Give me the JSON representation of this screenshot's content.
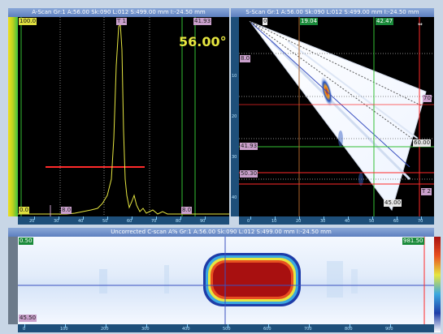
{
  "ascan": {
    "title": "A-Scan Gr:1 A:56.00 Sk:090 L:012 S:499.00 mm I:-24.50 mm",
    "top_left_value": "100.0",
    "bottom_left_value": "0.0",
    "gate_label": "T 1",
    "gate_right_value": "41.93",
    "cursor_b_label": "8.0",
    "cursor_r_label": "8.0",
    "angle": "56.00°",
    "axis_ticks": [
      "20",
      "30",
      "40",
      "50",
      "60",
      "70",
      "80",
      "90"
    ]
  },
  "sscan": {
    "title": "S-Scan Gr:1 A:56.00 Sk:090 L:012 S:499.00 mm I:-24.50 mm",
    "top_left_label": "0",
    "top_mid_value": "19.04",
    "top_right_value": "42.47",
    "left_value_1": "8.0",
    "left_value_2": "41.93",
    "left_value_3": "50.30",
    "right_value_1": "70",
    "right_value_2": "60.00",
    "right_value_3": "T 2",
    "bottom_value": "45.00",
    "vruler_ticks": [
      "10",
      "20",
      "30",
      "40"
    ],
    "axis_ticks": [
      "0",
      "10",
      "20",
      "30",
      "40",
      "50",
      "60",
      "70"
    ],
    "expand_icon": "⇔"
  },
  "cscan": {
    "title": "Uncorrected C-scan A% Gr:1 A:56.00 Sk:090 L:012 S:499.00 mm I:-24.50 mm",
    "top_left_value": "0.50",
    "top_right_value": "981.50",
    "bottom_left_value": "45.50",
    "axis_ticks": [
      "0",
      "100",
      "200",
      "300",
      "400",
      "500",
      "600",
      "700",
      "800",
      "900"
    ]
  },
  "colors": {
    "gate_red": "#ff2a2a",
    "cursor_green": "#34c034",
    "signal_yellow": "#e6e640",
    "title_blue": "#5d7fbf"
  }
}
